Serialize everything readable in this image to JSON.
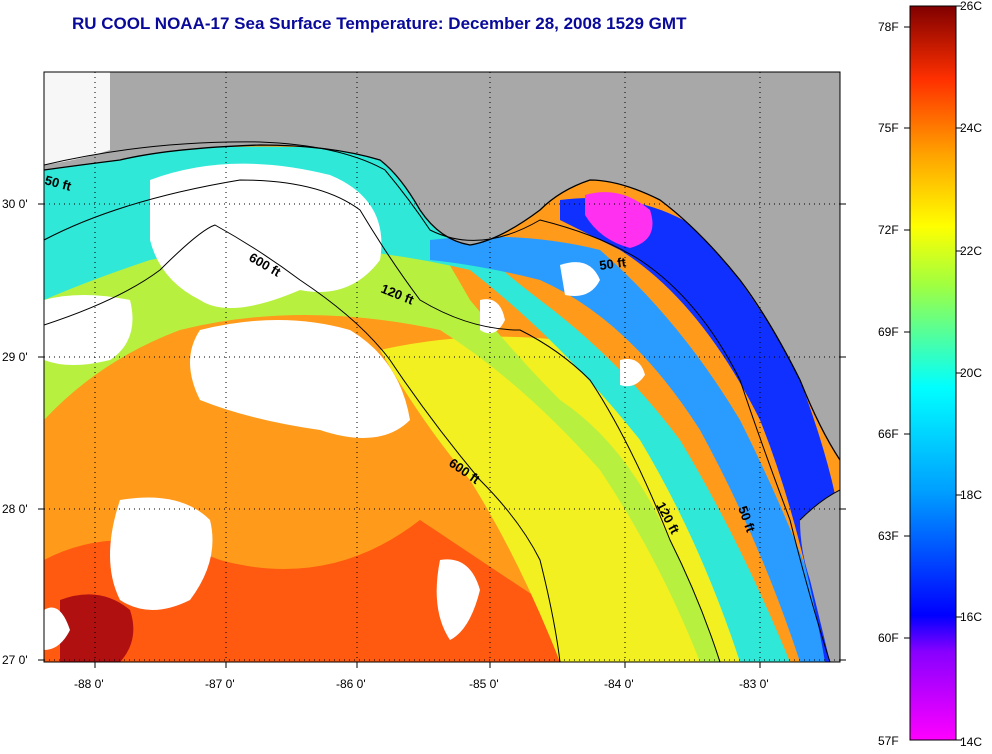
{
  "title": "RU COOL  NOAA-17  Sea Surface Temperature:  December 28, 2008 1529 GMT",
  "map": {
    "lon_ticks": [
      "-88 0'",
      "-87 0'",
      "-86 0'",
      "-85 0'",
      "-84 0'",
      "-83 0'"
    ],
    "lat_ticks": [
      "30 0'",
      "29 0'",
      "28 0'",
      "27 0'"
    ],
    "isobaths": [
      {
        "label": "50 ft",
        "depth": "50 ft"
      },
      {
        "label": "120 ft",
        "depth": "120 ft"
      },
      {
        "label": "600 ft",
        "depth": "600 ft"
      },
      {
        "label": "600 ft",
        "depth": "600 ft"
      },
      {
        "label": "120 ft",
        "depth": "120 ft"
      },
      {
        "label": "50 ft",
        "depth": "50 ft"
      },
      {
        "label": "50 ft",
        "depth": "50 ft"
      }
    ],
    "colors": {
      "land": "#a8a8a8",
      "cloud": "#ffffff"
    }
  },
  "colorbar": {
    "fahrenheit": [
      "78F",
      "75F",
      "72F",
      "69F",
      "66F",
      "63F",
      "60F",
      "57F"
    ],
    "celsius": [
      "26C",
      "24C",
      "22C",
      "20C",
      "18C",
      "16C",
      "14C"
    ],
    "range_c": [
      14,
      26
    ]
  }
}
